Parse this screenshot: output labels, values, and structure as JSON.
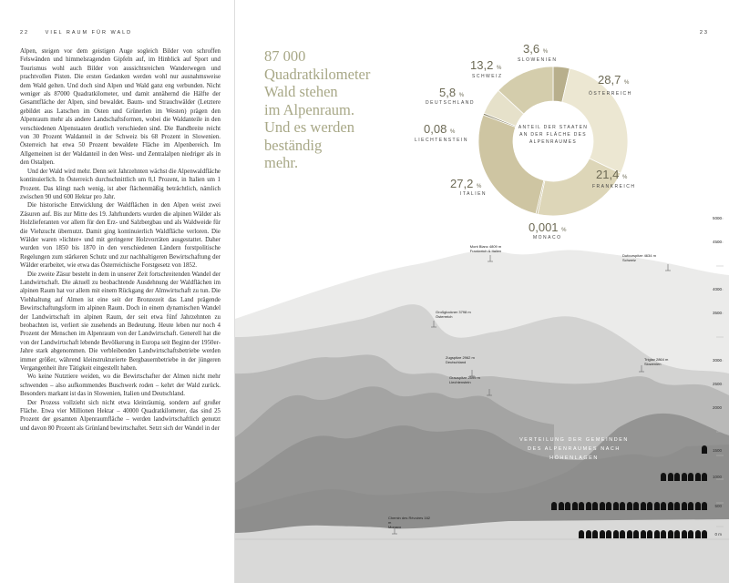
{
  "left_page": {
    "folio": "22",
    "running_head": "VIEL RAUM FÜR WALD",
    "paragraphs": [
      "Alpen, steigen vor dem geistigen Auge sogleich Bilder von schroffen Felswänden und himmelsragenden Gipfeln auf, im Hinblick auf Sport und Tourismus wohl auch Bilder von aussichtsreichen Wanderwegen und prachtvollen Pisten. Die ersten Gedanken werden wohl nur ausnahmsweise dem Wald gelten. Und doch sind Alpen und Wald ganz eng verbunden. Nicht weniger als 87000 Quadratkilometer, und damit annähernd die Hälfte der Gesamtfläche der Alpen, sind bewaldet. Baum- und Strauchwälder (Letztere gebildet aus Latschen im Osten und Grünerlen im Westen) prägen den Alpenraum mehr als andere Landschaftsformen, wobei die Waldanteile in den verschiedenen Alpenstaaten deutlich verschieden sind. Die Bandbreite reicht von 30 Prozent Waldanteil in der Schweiz bis 68 Prozent in Slowenien. Österreich hat etwa 50 Prozent bewaldete Fläche im Alpenbereich. Im Allgemeinen ist der Waldanteil in den West- und Zentralalpen niedriger als in den Ostalpen.",
      "Und der Wald wird mehr. Denn seit Jahrzehnten wächst die Alpenwaldfläche kontinuierlich. In Österreich durchschnittlich um 0,1 Prozent, in Italien um 1 Prozent. Das klingt nach wenig, ist aber flächenmäßig beträchtlich, nämlich zwischen 90 und 600 Hektar pro Jahr.",
      "Die historische Entwicklung der Waldflächen in den Alpen weist zwei Zäsuren auf. Bis zur Mitte des 19. Jahrhunderts wurden die alpinen Wälder als Holzlieferanten vor allem für den Erz- und Salzbergbau und als Waldweide für die Viehzucht übernutzt. Damit ging kontinuierlich Waldfläche verloren. Die Wälder waren »lichter« und mit geringerer Holzvorräten ausgestattet. Daher wurden von 1850 bis 1870 in den verschiedenen Ländern forstpolitische Regelungen zum stärkeren Schutz und zur nachhaltigeren Bewirtschaftung der Wälder erarbeitet, wie etwa das Österreichische Forstgesetz von 1852.",
      "Die zweite Zäsur besteht in dem in unserer Zeit fortschreitenden Wandel der Landwirtschaft. Die aktuell zu beobachtende Ausdehnung der Waldflächen im alpinen Raum hat vor allem mit einem Rückgang der Almwirtschaft zu tun. Die Viehhaltung auf Almen ist eine seit der Bronzezeit das Land prägende Bewirtschaftungsform im alpinen Raum. Doch in einem dynamischen Wandel der Landwirtschaft im alpinen Raum, der seit etwa fünf Jahrzehnten zu beobachten ist, verliert sie zusehends an Bedeutung. Heute leben nur noch 4 Prozent der Menschen im Alpenraum von der Landwirtschaft. Generell hat die von der Landwirtschaft lebende Bevölkerung in Europa seit Beginn der 1950er-Jahre stark abgenommen. Die verbleibenden Landwirtschaftsbetriebe werden immer größer, während kleinstrukturierte Bergbauernbetriebe in der jüngeren Vergangenheit ihre Tätigkeit eingestellt haben.",
      "Wo keine Nutztiere weiden, wo die Bewirtschafter der Almen nicht mehr schwenden – also aufkommendes Buschwerk roden – kehrt der Wald zurück. Besonders markant ist das in Slowenien, Italien und Deutschland.",
      "Der Prozess vollzieht sich nicht etwa kleinräumig, sondern auf großer Fläche. Etwa vier Millionen Hektar – 40000 Quadratkilometer, das sind 25 Prozent der gesamten Alpenraumfläche – werden landwirtschaftlich genutzt und davon 80 Prozent als Grünland bewirtschaftet. Setzt sich der Wandel in der"
    ]
  },
  "right_page": {
    "folio": "23",
    "pull_quote": "87 000 Quadratkilometer Wald stehen im Alpenraum. Und es werden beständig mehr.",
    "donut": {
      "center_title": "ANTEIL DER STAATEN AN DER FLÄCHE DES ALPENRAUMES",
      "unit": "%",
      "slices": [
        {
          "value": "3,6",
          "name": "SLOWENIEN",
          "share": 3.6,
          "color": "#b8af8c"
        },
        {
          "value": "28,7",
          "name": "ÖSTERREICH",
          "share": 28.7,
          "color": "#ece7d2"
        },
        {
          "value": "21,4",
          "name": "FRANKREICH",
          "share": 21.4,
          "color": "#ddd6b8"
        },
        {
          "value": "0,001",
          "name": "MONACO",
          "share": 0.001,
          "color": "#c6bd98"
        },
        {
          "value": "27,2",
          "name": "ITALIEN",
          "share": 27.2,
          "color": "#cec5a2"
        },
        {
          "value": "0,08",
          "name": "LIECHTENSTEIN",
          "share": 0.08,
          "color": "#8a8466"
        },
        {
          "value": "5,8",
          "name": "DEUTSCHLAND",
          "share": 5.8,
          "color": "#e6e1ca"
        },
        {
          "value": "13,2",
          "name": "SCHWEIZ",
          "share": 13.2,
          "color": "#d4cdac"
        }
      ]
    },
    "peaks": [
      {
        "name": "Mont Blanc 4809 m",
        "country": "Frankreich & Italien"
      },
      {
        "name": "Dufourspitze 4634 m",
        "country": "Schweiz"
      },
      {
        "name": "Großglockner 3798 m",
        "country": "Österreich"
      },
      {
        "name": "Zugspitze 2962 m",
        "country": "Deutschland"
      },
      {
        "name": "Grauspitze 2599 m",
        "country": "Liechtenstein"
      },
      {
        "name": "Triglav 2864 m",
        "country": "Slowenien"
      },
      {
        "name": "Chemin des Révoires 162 m",
        "country": "Monaco"
      }
    ],
    "y_axis": [
      "5000",
      "4500",
      "4000",
      "3500",
      "3000",
      "2500",
      "2000",
      "1500",
      "1000",
      "500",
      "0 m"
    ],
    "distribution_title": "VERTEILUNG DER GEMEINDEN DES ALPENRAUMES NACH HÖHENLAGEN",
    "altitude_bars": {
      "1500": 1,
      "1000": 7,
      "500": 23,
      "0": 19
    }
  }
}
